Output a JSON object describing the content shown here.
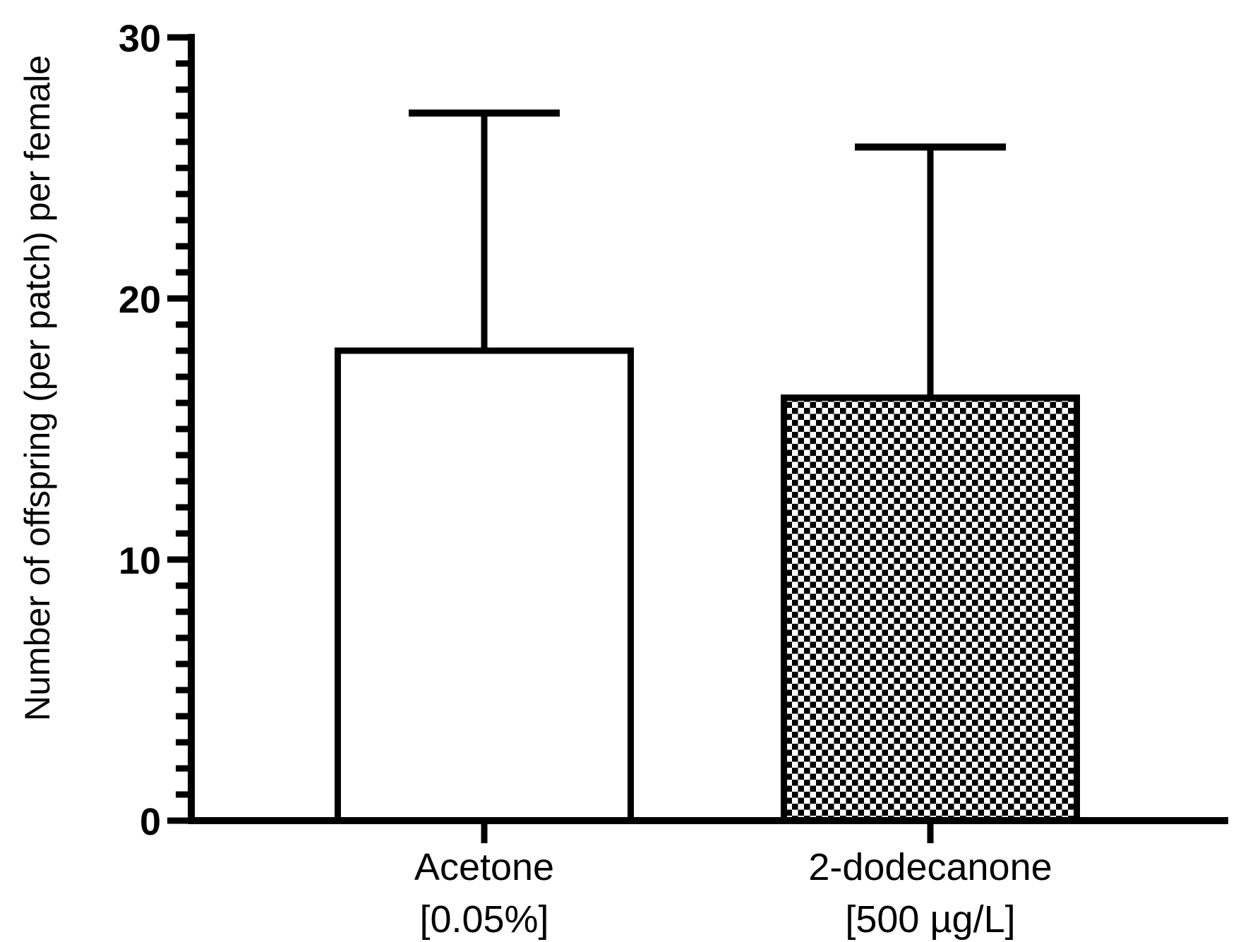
{
  "chart_data": {
    "type": "bar",
    "title": "",
    "ylabel": "Number of offspring (per patch) per female",
    "xlabel": "",
    "ylim": [
      0,
      30
    ],
    "yticks": [
      0,
      10,
      20,
      30
    ],
    "minor_tick_step": 1,
    "categories": [
      {
        "line1": "Acetone",
        "line2": "[0.05%]"
      },
      {
        "line1": "2-dodecanone",
        "line2": "[500 µg/L]"
      }
    ],
    "values": [
      18.0,
      16.2
    ],
    "errors_plus": [
      9.1,
      9.6
    ],
    "error_bar_style": "upper only, capped",
    "bar_fills": [
      "white",
      "checkerboard"
    ],
    "bar_border_color": "#000000",
    "axis_color": "#000000",
    "background_color": "#ffffff",
    "grid": false,
    "legend": "none"
  }
}
